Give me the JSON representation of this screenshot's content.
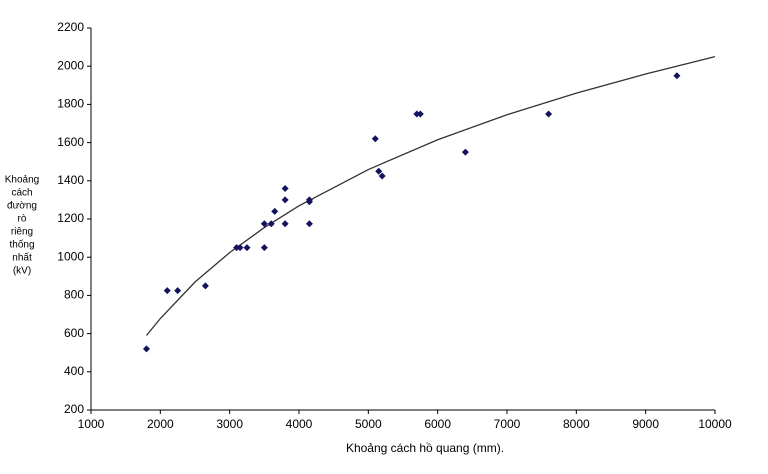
{
  "chart_data": {
    "type": "scatter",
    "x_label": "Khoảng cách hồ quang (mm).",
    "y_label_lines": [
      "Khoảng",
      "cách",
      "đường",
      "rò",
      "riêng",
      "thống",
      "nhất",
      "(kV)"
    ],
    "x": [
      1800,
      2100,
      2250,
      2650,
      3100,
      3150,
      3250,
      3500,
      3500,
      3600,
      3650,
      3800,
      3800,
      3800,
      4150,
      4150,
      4150,
      5100,
      5150,
      5200,
      5700,
      5750,
      6400,
      7600,
      9450
    ],
    "values": [
      520,
      825,
      825,
      850,
      1050,
      1050,
      1050,
      1050,
      1175,
      1175,
      1240,
      1175,
      1300,
      1360,
      1300,
      1290,
      1175,
      1620,
      1450,
      1425,
      1750,
      1750,
      1550,
      1750,
      1950
    ],
    "color": "#14145e",
    "trendline": {
      "x": [
        1800,
        2000,
        2500,
        3000,
        3500,
        4000,
        5000,
        6000,
        7000,
        8000,
        9000,
        10000
      ],
      "values": [
        590,
        679,
        870,
        1024,
        1155,
        1269,
        1459,
        1615,
        1746,
        1859,
        1959,
        2050
      ],
      "color": "#333333"
    },
    "xlim": [
      1000,
      10000
    ],
    "xticks": [
      1000,
      2000,
      3000,
      4000,
      5000,
      6000,
      7000,
      8000,
      9000,
      10000
    ],
    "ylim": [
      200,
      2200
    ],
    "yticks": [
      200,
      400,
      600,
      800,
      1000,
      1200,
      1400,
      1600,
      1800,
      2000,
      2200
    ],
    "grid": false
  }
}
